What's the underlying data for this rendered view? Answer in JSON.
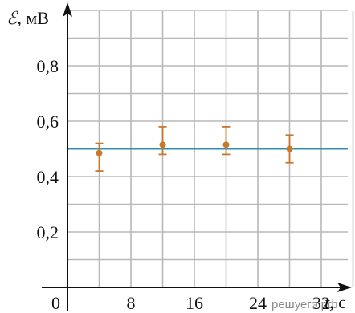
{
  "chart_data": {
    "type": "scatter",
    "title": "",
    "xlabel": "t, с",
    "xlabel_var": "t",
    "xlabel_unit": ", с",
    "ylabel": "ℰ, мВ",
    "ylabel_var": "ℰ",
    "ylabel_unit": ", мВ",
    "x_origin_label": "0",
    "xlim": [
      0,
      40
    ],
    "ylim": [
      0,
      1.0
    ],
    "x_gridlines": [
      4,
      8,
      12,
      16,
      20,
      24,
      28,
      32,
      36,
      40
    ],
    "y_gridlines": [
      0.1,
      0.2,
      0.3,
      0.4,
      0.5,
      0.6,
      0.7,
      0.8,
      0.9,
      1.0
    ],
    "x_ticks": [
      {
        "value": 8,
        "label": "8"
      },
      {
        "value": 16,
        "label": "16"
      },
      {
        "value": 24,
        "label": "24"
      },
      {
        "value": 32,
        "label": "32"
      }
    ],
    "y_ticks": [
      {
        "value": 0.2,
        "label": "0,2"
      },
      {
        "value": 0.4,
        "label": "0,4"
      },
      {
        "value": 0.6,
        "label": "0,6"
      },
      {
        "value": 0.8,
        "label": "0,8"
      }
    ],
    "points": [
      {
        "x": 4,
        "y": 0.485,
        "y_low": 0.42,
        "y_high": 0.52
      },
      {
        "x": 12,
        "y": 0.515,
        "y_low": 0.48,
        "y_high": 0.58
      },
      {
        "x": 20,
        "y": 0.515,
        "y_low": 0.48,
        "y_high": 0.58
      },
      {
        "x": 28,
        "y": 0.5,
        "y_low": 0.45,
        "y_high": 0.55
      }
    ],
    "reference_line": {
      "y": 0.5
    },
    "grid": true,
    "colors": {
      "points": "#c8782a",
      "reference_line": "#2f8fb0",
      "grid": "#b8b8b8",
      "axes": "#111111"
    }
  },
  "watermark": "решуегэ.рф"
}
